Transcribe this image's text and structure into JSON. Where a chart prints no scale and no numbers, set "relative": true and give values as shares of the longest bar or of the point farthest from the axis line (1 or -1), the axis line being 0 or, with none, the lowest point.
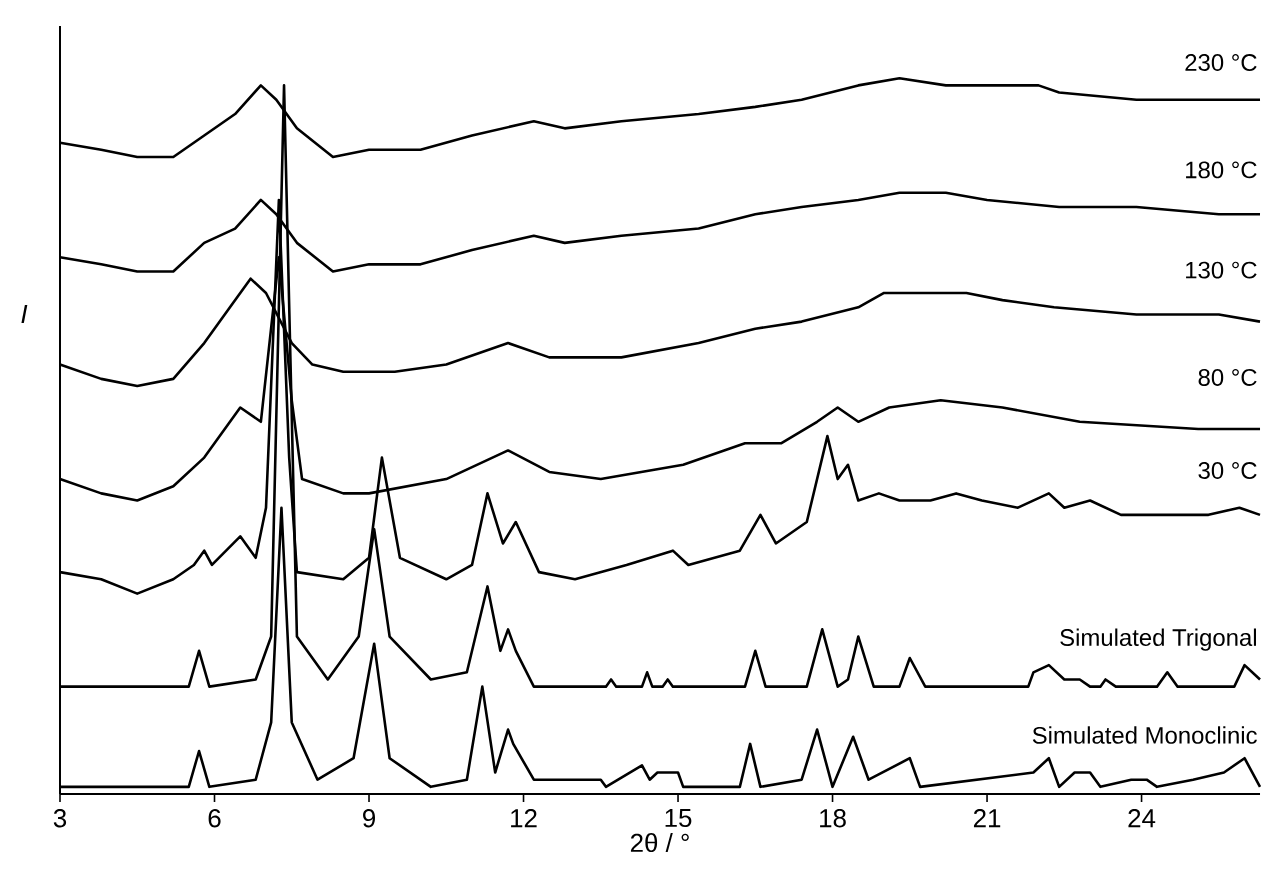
{
  "chart_data": {
    "type": "line",
    "relative": true,
    "xlabel": "2θ / °",
    "ylabel": "*I*",
    "xlim": [
      3,
      26.3
    ],
    "xticks": [
      3,
      6,
      9,
      12,
      15,
      18,
      21,
      24
    ],
    "series": [
      {
        "name": "230 °C",
        "color": "#000000",
        "x": [
          3.0,
          3.8,
          4.5,
          5.2,
          5.8,
          6.4,
          6.9,
          7.2,
          7.6,
          8.3,
          9.0,
          10.0,
          11.0,
          12.2,
          12.8,
          13.9,
          15.4,
          16.5,
          17.4,
          18.5,
          19.3,
          20.2,
          21.0,
          22.0,
          22.4,
          23.9,
          25.5,
          26.3
        ],
        "values": [
          0.91,
          0.9,
          0.89,
          0.89,
          0.92,
          0.95,
          0.99,
          0.97,
          0.93,
          0.89,
          0.9,
          0.9,
          0.92,
          0.94,
          0.93,
          0.94,
          0.95,
          0.96,
          0.97,
          0.99,
          1.0,
          0.99,
          0.99,
          0.99,
          0.98,
          0.97,
          0.97,
          0.97
        ]
      },
      {
        "name": "180 °C",
        "color": "#000000",
        "x": [
          3.0,
          3.8,
          4.5,
          5.2,
          5.8,
          6.4,
          6.9,
          7.2,
          7.6,
          8.3,
          9.0,
          10.0,
          11.0,
          12.2,
          12.8,
          13.9,
          15.4,
          16.5,
          17.4,
          18.5,
          19.3,
          20.2,
          21.0,
          22.4,
          23.9,
          25.5,
          26.3
        ],
        "values": [
          0.75,
          0.74,
          0.73,
          0.73,
          0.77,
          0.79,
          0.83,
          0.81,
          0.77,
          0.73,
          0.74,
          0.74,
          0.76,
          0.78,
          0.77,
          0.78,
          0.79,
          0.81,
          0.82,
          0.83,
          0.84,
          0.84,
          0.83,
          0.82,
          0.82,
          0.81,
          0.81
        ]
      },
      {
        "name": "130 °C",
        "color": "#000000",
        "x": [
          3.0,
          3.8,
          4.5,
          5.2,
          5.8,
          6.3,
          6.7,
          7.0,
          7.5,
          7.9,
          8.5,
          9.5,
          10.5,
          11.7,
          12.5,
          13.9,
          15.4,
          16.5,
          17.4,
          18.5,
          19.0,
          20.0,
          20.6,
          21.3,
          22.3,
          23.9,
          25.5,
          26.3
        ],
        "values": [
          0.6,
          0.58,
          0.57,
          0.58,
          0.63,
          0.68,
          0.72,
          0.7,
          0.63,
          0.6,
          0.59,
          0.59,
          0.6,
          0.63,
          0.61,
          0.61,
          0.63,
          0.65,
          0.66,
          0.68,
          0.7,
          0.7,
          0.7,
          0.69,
          0.68,
          0.67,
          0.67,
          0.66
        ]
      },
      {
        "name": "80 °C",
        "color": "#000000",
        "x": [
          3.0,
          3.8,
          4.5,
          5.2,
          5.8,
          6.5,
          6.9,
          7.25,
          7.5,
          7.7,
          8.5,
          9.0,
          10.5,
          11.7,
          12.5,
          13.5,
          15.1,
          16.3,
          17.0,
          17.7,
          18.1,
          18.5,
          19.1,
          20.1,
          21.3,
          22.8,
          25.1,
          26.3
        ],
        "values": [
          0.44,
          0.42,
          0.41,
          0.43,
          0.47,
          0.54,
          0.52,
          0.75,
          0.55,
          0.44,
          0.42,
          0.42,
          0.44,
          0.48,
          0.45,
          0.44,
          0.46,
          0.49,
          0.49,
          0.52,
          0.54,
          0.52,
          0.54,
          0.55,
          0.54,
          0.52,
          0.51,
          0.51
        ]
      },
      {
        "name": "30 °C",
        "color": "#000000",
        "x": [
          3.0,
          3.8,
          4.5,
          5.2,
          5.6,
          5.8,
          5.95,
          6.5,
          6.8,
          7.0,
          7.25,
          7.45,
          7.6,
          8.5,
          9.0,
          9.25,
          9.6,
          10.5,
          11.0,
          11.3,
          11.6,
          11.85,
          12.3,
          13.0,
          14.0,
          14.9,
          15.2,
          16.2,
          16.6,
          16.9,
          17.5,
          17.9,
          18.1,
          18.3,
          18.5,
          18.9,
          19.3,
          19.9,
          20.4,
          20.9,
          21.6,
          22.2,
          22.5,
          23.0,
          23.6,
          24.6,
          25.3,
          25.9,
          26.3
        ],
        "values": [
          0.31,
          0.3,
          0.28,
          0.3,
          0.32,
          0.34,
          0.32,
          0.36,
          0.33,
          0.4,
          0.83,
          0.47,
          0.31,
          0.3,
          0.33,
          0.47,
          0.33,
          0.3,
          0.32,
          0.42,
          0.35,
          0.38,
          0.31,
          0.3,
          0.32,
          0.34,
          0.32,
          0.34,
          0.39,
          0.35,
          0.38,
          0.5,
          0.44,
          0.46,
          0.41,
          0.42,
          0.41,
          0.41,
          0.42,
          0.41,
          0.4,
          0.42,
          0.4,
          0.41,
          0.39,
          0.39,
          0.39,
          0.4,
          0.39
        ]
      },
      {
        "name": "Simulated Trigonal",
        "color": "#000000",
        "x": [
          3.0,
          5.5,
          5.7,
          5.9,
          6.8,
          7.1,
          7.35,
          7.6,
          8.2,
          8.8,
          9.1,
          9.4,
          10.2,
          10.9,
          11.3,
          11.55,
          11.7,
          11.85,
          12.2,
          13.6,
          13.7,
          13.8,
          14.3,
          14.4,
          14.5,
          14.7,
          14.8,
          14.9,
          16.3,
          16.5,
          16.7,
          17.5,
          17.8,
          18.1,
          18.3,
          18.5,
          18.8,
          19.3,
          19.5,
          19.8,
          21.8,
          21.9,
          22.2,
          22.5,
          22.8,
          23.0,
          23.2,
          23.3,
          23.5,
          24.3,
          24.5,
          24.7,
          25.8,
          26.0,
          26.3
        ],
        "values": [
          0.15,
          0.15,
          0.2,
          0.15,
          0.16,
          0.22,
          0.99,
          0.22,
          0.16,
          0.22,
          0.37,
          0.22,
          0.16,
          0.17,
          0.29,
          0.2,
          0.23,
          0.2,
          0.15,
          0.15,
          0.16,
          0.15,
          0.15,
          0.17,
          0.15,
          0.15,
          0.16,
          0.15,
          0.15,
          0.2,
          0.15,
          0.15,
          0.23,
          0.15,
          0.16,
          0.22,
          0.15,
          0.15,
          0.19,
          0.15,
          0.15,
          0.17,
          0.18,
          0.16,
          0.16,
          0.15,
          0.15,
          0.16,
          0.15,
          0.15,
          0.17,
          0.15,
          0.15,
          0.18,
          0.16
        ]
      },
      {
        "name": "Simulated Monoclinic",
        "color": "#000000",
        "x": [
          3.0,
          5.5,
          5.7,
          5.9,
          6.8,
          7.1,
          7.3,
          7.5,
          8.0,
          8.7,
          9.1,
          9.4,
          10.2,
          10.9,
          11.2,
          11.45,
          11.7,
          11.8,
          12.2,
          13.5,
          13.6,
          14.3,
          14.45,
          14.6,
          15.0,
          15.1,
          16.2,
          16.4,
          16.6,
          17.4,
          17.7,
          18.0,
          18.4,
          18.7,
          19.5,
          19.7,
          21.9,
          22.2,
          22.4,
          22.7,
          23.0,
          23.2,
          23.8,
          24.1,
          24.3,
          25.0,
          25.6,
          26.0,
          26.3
        ],
        "values": [
          0.01,
          0.01,
          0.06,
          0.01,
          0.02,
          0.1,
          0.4,
          0.1,
          0.02,
          0.05,
          0.21,
          0.05,
          0.01,
          0.02,
          0.15,
          0.03,
          0.09,
          0.07,
          0.02,
          0.02,
          0.01,
          0.04,
          0.02,
          0.03,
          0.03,
          0.01,
          0.01,
          0.07,
          0.01,
          0.02,
          0.09,
          0.01,
          0.08,
          0.02,
          0.05,
          0.01,
          0.03,
          0.05,
          0.01,
          0.03,
          0.03,
          0.01,
          0.02,
          0.02,
          0.01,
          0.02,
          0.03,
          0.05,
          0.01
        ]
      }
    ]
  }
}
